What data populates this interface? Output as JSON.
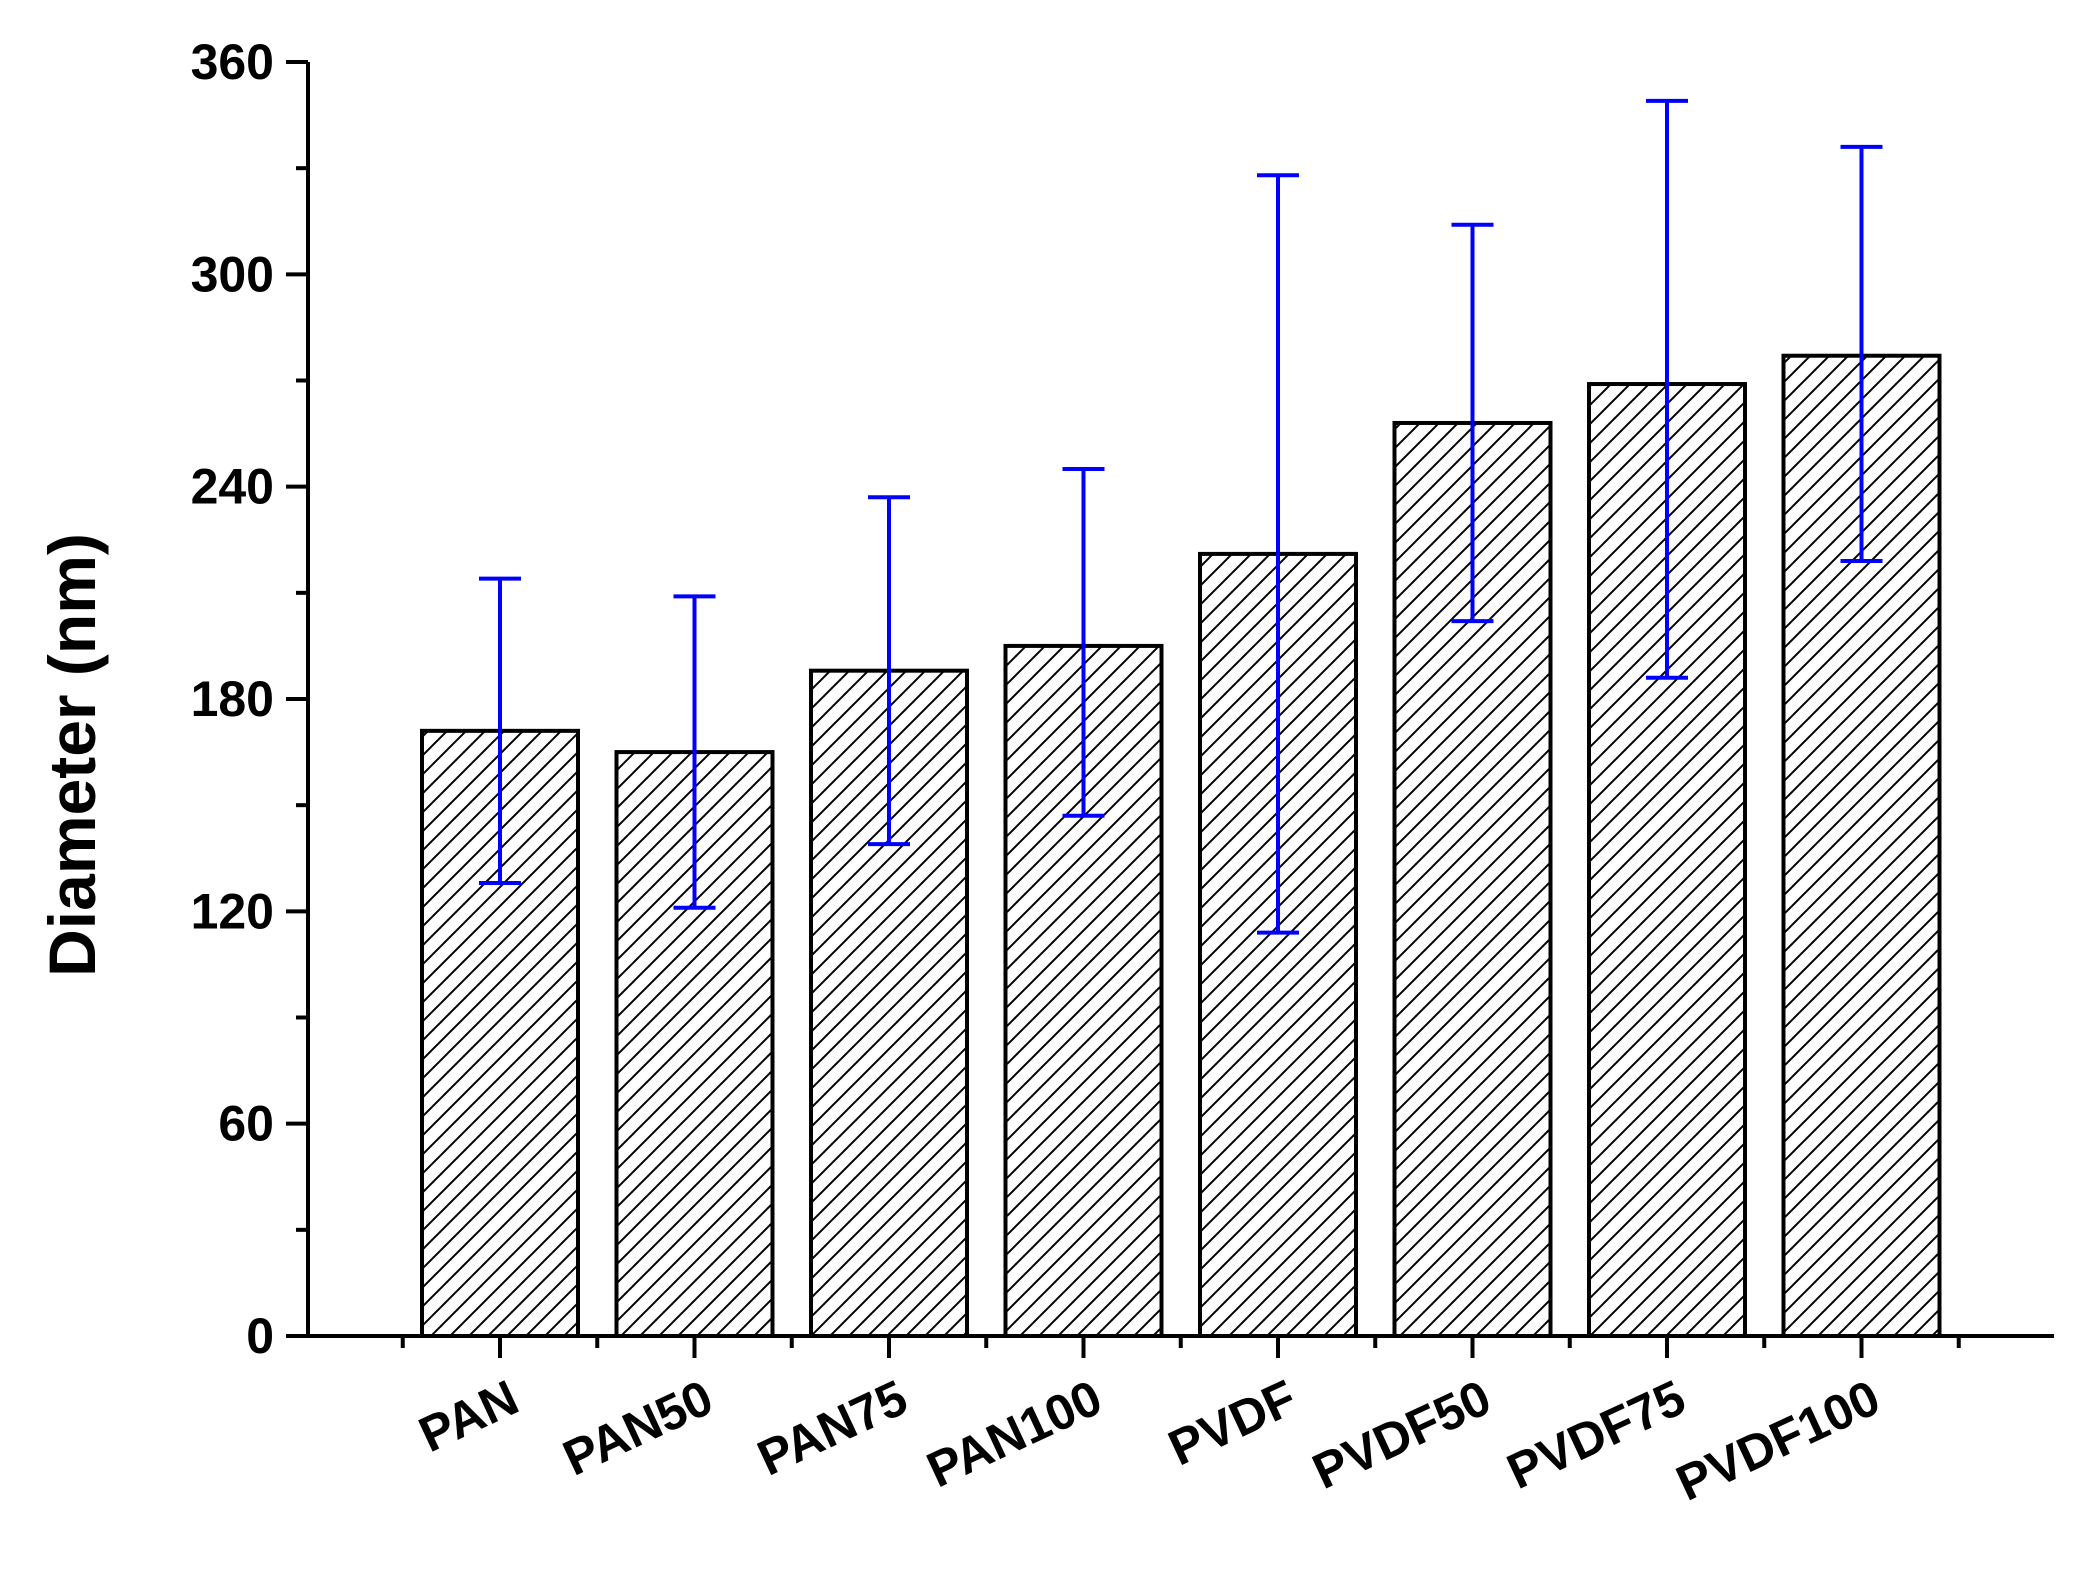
{
  "chart_data": {
    "type": "bar",
    "title": "",
    "xlabel": "",
    "ylabel": "Diameter (nm)",
    "ylim": [
      0,
      360
    ],
    "yticks": [
      0,
      60,
      120,
      180,
      240,
      300,
      360
    ],
    "categories": [
      "PAN",
      "PAN50",
      "PAN75",
      "PAN100",
      "PVDF",
      "PVDF50",
      "PVDF75",
      "PVDF100"
    ],
    "values": [
      171,
      165,
      188,
      195,
      221,
      258,
      269,
      277
    ],
    "error_low": [
      128,
      121,
      139,
      147,
      114,
      202,
      186,
      219
    ],
    "error_high": [
      214,
      209,
      237,
      245,
      328,
      314,
      349,
      336
    ],
    "grid": false,
    "legend": "none",
    "bar_fill": "hatched",
    "colors": {
      "bar_edge": "#000000",
      "error_bar": "#0000ff",
      "axis": "#000000"
    }
  }
}
